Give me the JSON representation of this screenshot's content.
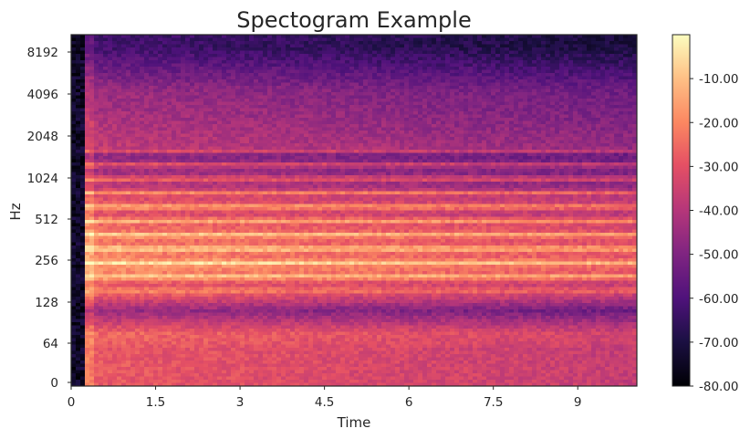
{
  "chart_data": {
    "type": "heatmap",
    "title": "Spectogram Example",
    "xlabel": "Time",
    "ylabel": "Hz",
    "x_ticks": [
      "0",
      "1.5",
      "3",
      "4.5",
      "6",
      "7.5",
      "9"
    ],
    "x_tick_values": [
      0,
      1.5,
      3,
      4.5,
      6,
      7.5,
      9
    ],
    "xlim": [
      0,
      10.05
    ],
    "y_ticks": [
      "0",
      "64",
      "128",
      "256",
      "512",
      "1024",
      "2048",
      "4096",
      "8192"
    ],
    "y_scale": "log2 (symlog)",
    "colorbar": {
      "colormap": "magma",
      "vmin": -80,
      "vmax": 0,
      "ticks": [
        "-10.00",
        "-20.00",
        "-30.00",
        "-40.00",
        "-50.00",
        "-60.00",
        "-70.00",
        "-80.00"
      ],
      "tick_values": [
        -10,
        -20,
        -30,
        -40,
        -50,
        -60,
        -70,
        -80
      ]
    },
    "onset_time": 0.25,
    "bands_db": [
      {
        "hz": 55,
        "db": -28
      },
      {
        "hz": 75,
        "db": -25
      },
      {
        "hz": 110,
        "db": -45
      },
      {
        "hz": 165,
        "db": -18
      },
      {
        "hz": 220,
        "db": -8
      },
      {
        "hz": 330,
        "db": -12
      },
      {
        "hz": 440,
        "db": -14
      },
      {
        "hz": 550,
        "db": -20
      },
      {
        "hz": 660,
        "db": -18
      },
      {
        "hz": 880,
        "db": -28
      },
      {
        "hz": 1300,
        "db": -35
      },
      {
        "hz": 2800,
        "db": -42
      },
      {
        "hz": 4300,
        "db": -45
      },
      {
        "hz": 9000,
        "db": -62
      }
    ]
  }
}
